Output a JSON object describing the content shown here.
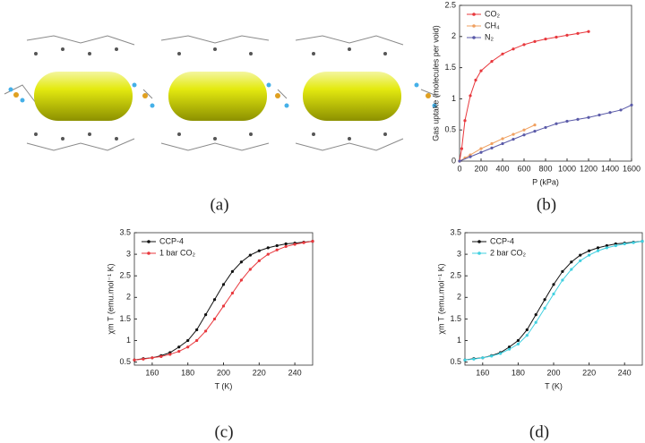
{
  "panel_labels": [
    "(a)",
    "(b)",
    "(c)",
    "(d)"
  ],
  "chart_data": [
    {
      "type": "line",
      "xlabel": "P (kPa)",
      "ylabel": "Gas uptake (molecules per void)",
      "xlim": [
        0,
        1600
      ],
      "xticks": [
        0,
        200,
        400,
        600,
        800,
        1000,
        1200,
        1400,
        1600
      ],
      "ylim": [
        0,
        2.5
      ],
      "yticks": [
        0,
        0.5,
        1,
        1.5,
        2,
        2.5
      ],
      "legend": "upper left",
      "series": [
        {
          "name": "CO₂",
          "color": "#e8383d",
          "x": [
            0,
            20,
            50,
            100,
            150,
            200,
            300,
            400,
            500,
            600,
            700,
            800,
            900,
            1000,
            1100,
            1200
          ],
          "values": [
            0,
            0.2,
            0.65,
            1.05,
            1.3,
            1.45,
            1.6,
            1.72,
            1.8,
            1.87,
            1.92,
            1.96,
            1.99,
            2.02,
            2.05,
            2.08
          ]
        },
        {
          "name": "CH₄",
          "color": "#f0a060",
          "x": [
            0,
            50,
            100,
            200,
            300,
            400,
            500,
            600,
            700
          ],
          "values": [
            0,
            0.05,
            0.1,
            0.2,
            0.28,
            0.36,
            0.43,
            0.5,
            0.58
          ]
        },
        {
          "name": "N₂",
          "color": "#5a5aa8",
          "x": [
            0,
            100,
            200,
            300,
            400,
            500,
            600,
            700,
            800,
            900,
            1000,
            1100,
            1200,
            1300,
            1400,
            1500,
            1600
          ],
          "values": [
            0,
            0.07,
            0.14,
            0.21,
            0.28,
            0.35,
            0.42,
            0.48,
            0.54,
            0.6,
            0.64,
            0.67,
            0.7,
            0.74,
            0.78,
            0.82,
            0.9
          ]
        }
      ]
    },
    {
      "type": "line",
      "xlabel": "T (K)",
      "ylabel": "χm T (emu.mol⁻¹ K)",
      "xlim": [
        150,
        250
      ],
      "xticks": [
        160,
        180,
        200,
        220,
        240
      ],
      "ylim": [
        0.43,
        3.5
      ],
      "yticks": [
        0.5,
        1,
        1.5,
        2,
        2.5,
        3,
        3.5
      ],
      "legend": "upper left",
      "series": [
        {
          "name": "CCP-4",
          "color": "#111111",
          "x": [
            150,
            155,
            160,
            165,
            170,
            175,
            180,
            185,
            190,
            195,
            200,
            205,
            210,
            215,
            220,
            225,
            230,
            235,
            240,
            245,
            250
          ],
          "values": [
            0.55,
            0.58,
            0.6,
            0.65,
            0.72,
            0.85,
            1.0,
            1.25,
            1.6,
            1.95,
            2.3,
            2.6,
            2.82,
            2.98,
            3.08,
            3.15,
            3.2,
            3.24,
            3.26,
            3.28,
            3.3
          ]
        },
        {
          "name": "1 bar CO₂",
          "color": "#e8383d",
          "x": [
            150,
            155,
            160,
            165,
            170,
            175,
            180,
            185,
            190,
            195,
            200,
            205,
            210,
            215,
            220,
            225,
            230,
            235,
            240,
            245,
            250
          ],
          "values": [
            0.55,
            0.57,
            0.6,
            0.63,
            0.68,
            0.75,
            0.85,
            1.0,
            1.22,
            1.5,
            1.8,
            2.1,
            2.4,
            2.65,
            2.85,
            3.0,
            3.1,
            3.18,
            3.23,
            3.27,
            3.3
          ]
        }
      ]
    },
    {
      "type": "line",
      "xlabel": "T (K)",
      "ylabel": "χm T (emu.mol⁻¹ K)",
      "xlim": [
        150,
        250
      ],
      "xticks": [
        160,
        180,
        200,
        220,
        240
      ],
      "ylim": [
        0.43,
        3.5
      ],
      "yticks": [
        0.5,
        1,
        1.5,
        2,
        2.5,
        3,
        3.5
      ],
      "legend": "upper left",
      "series": [
        {
          "name": "CCP-4",
          "color": "#111111",
          "x": [
            150,
            155,
            160,
            165,
            170,
            175,
            180,
            185,
            190,
            195,
            200,
            205,
            210,
            215,
            220,
            225,
            230,
            235,
            240,
            245,
            250
          ],
          "values": [
            0.55,
            0.58,
            0.6,
            0.65,
            0.72,
            0.85,
            1.0,
            1.25,
            1.6,
            1.95,
            2.3,
            2.6,
            2.82,
            2.98,
            3.08,
            3.15,
            3.2,
            3.24,
            3.26,
            3.28,
            3.3
          ]
        },
        {
          "name": "2 bar CO₂",
          "color": "#40d0e0",
          "x": [
            150,
            155,
            160,
            165,
            170,
            175,
            180,
            185,
            190,
            195,
            200,
            205,
            210,
            215,
            220,
            225,
            230,
            235,
            240,
            245,
            250
          ],
          "values": [
            0.55,
            0.57,
            0.6,
            0.64,
            0.7,
            0.8,
            0.92,
            1.12,
            1.42,
            1.75,
            2.08,
            2.4,
            2.65,
            2.85,
            2.98,
            3.08,
            3.15,
            3.2,
            3.24,
            3.27,
            3.3
          ]
        }
      ]
    }
  ]
}
